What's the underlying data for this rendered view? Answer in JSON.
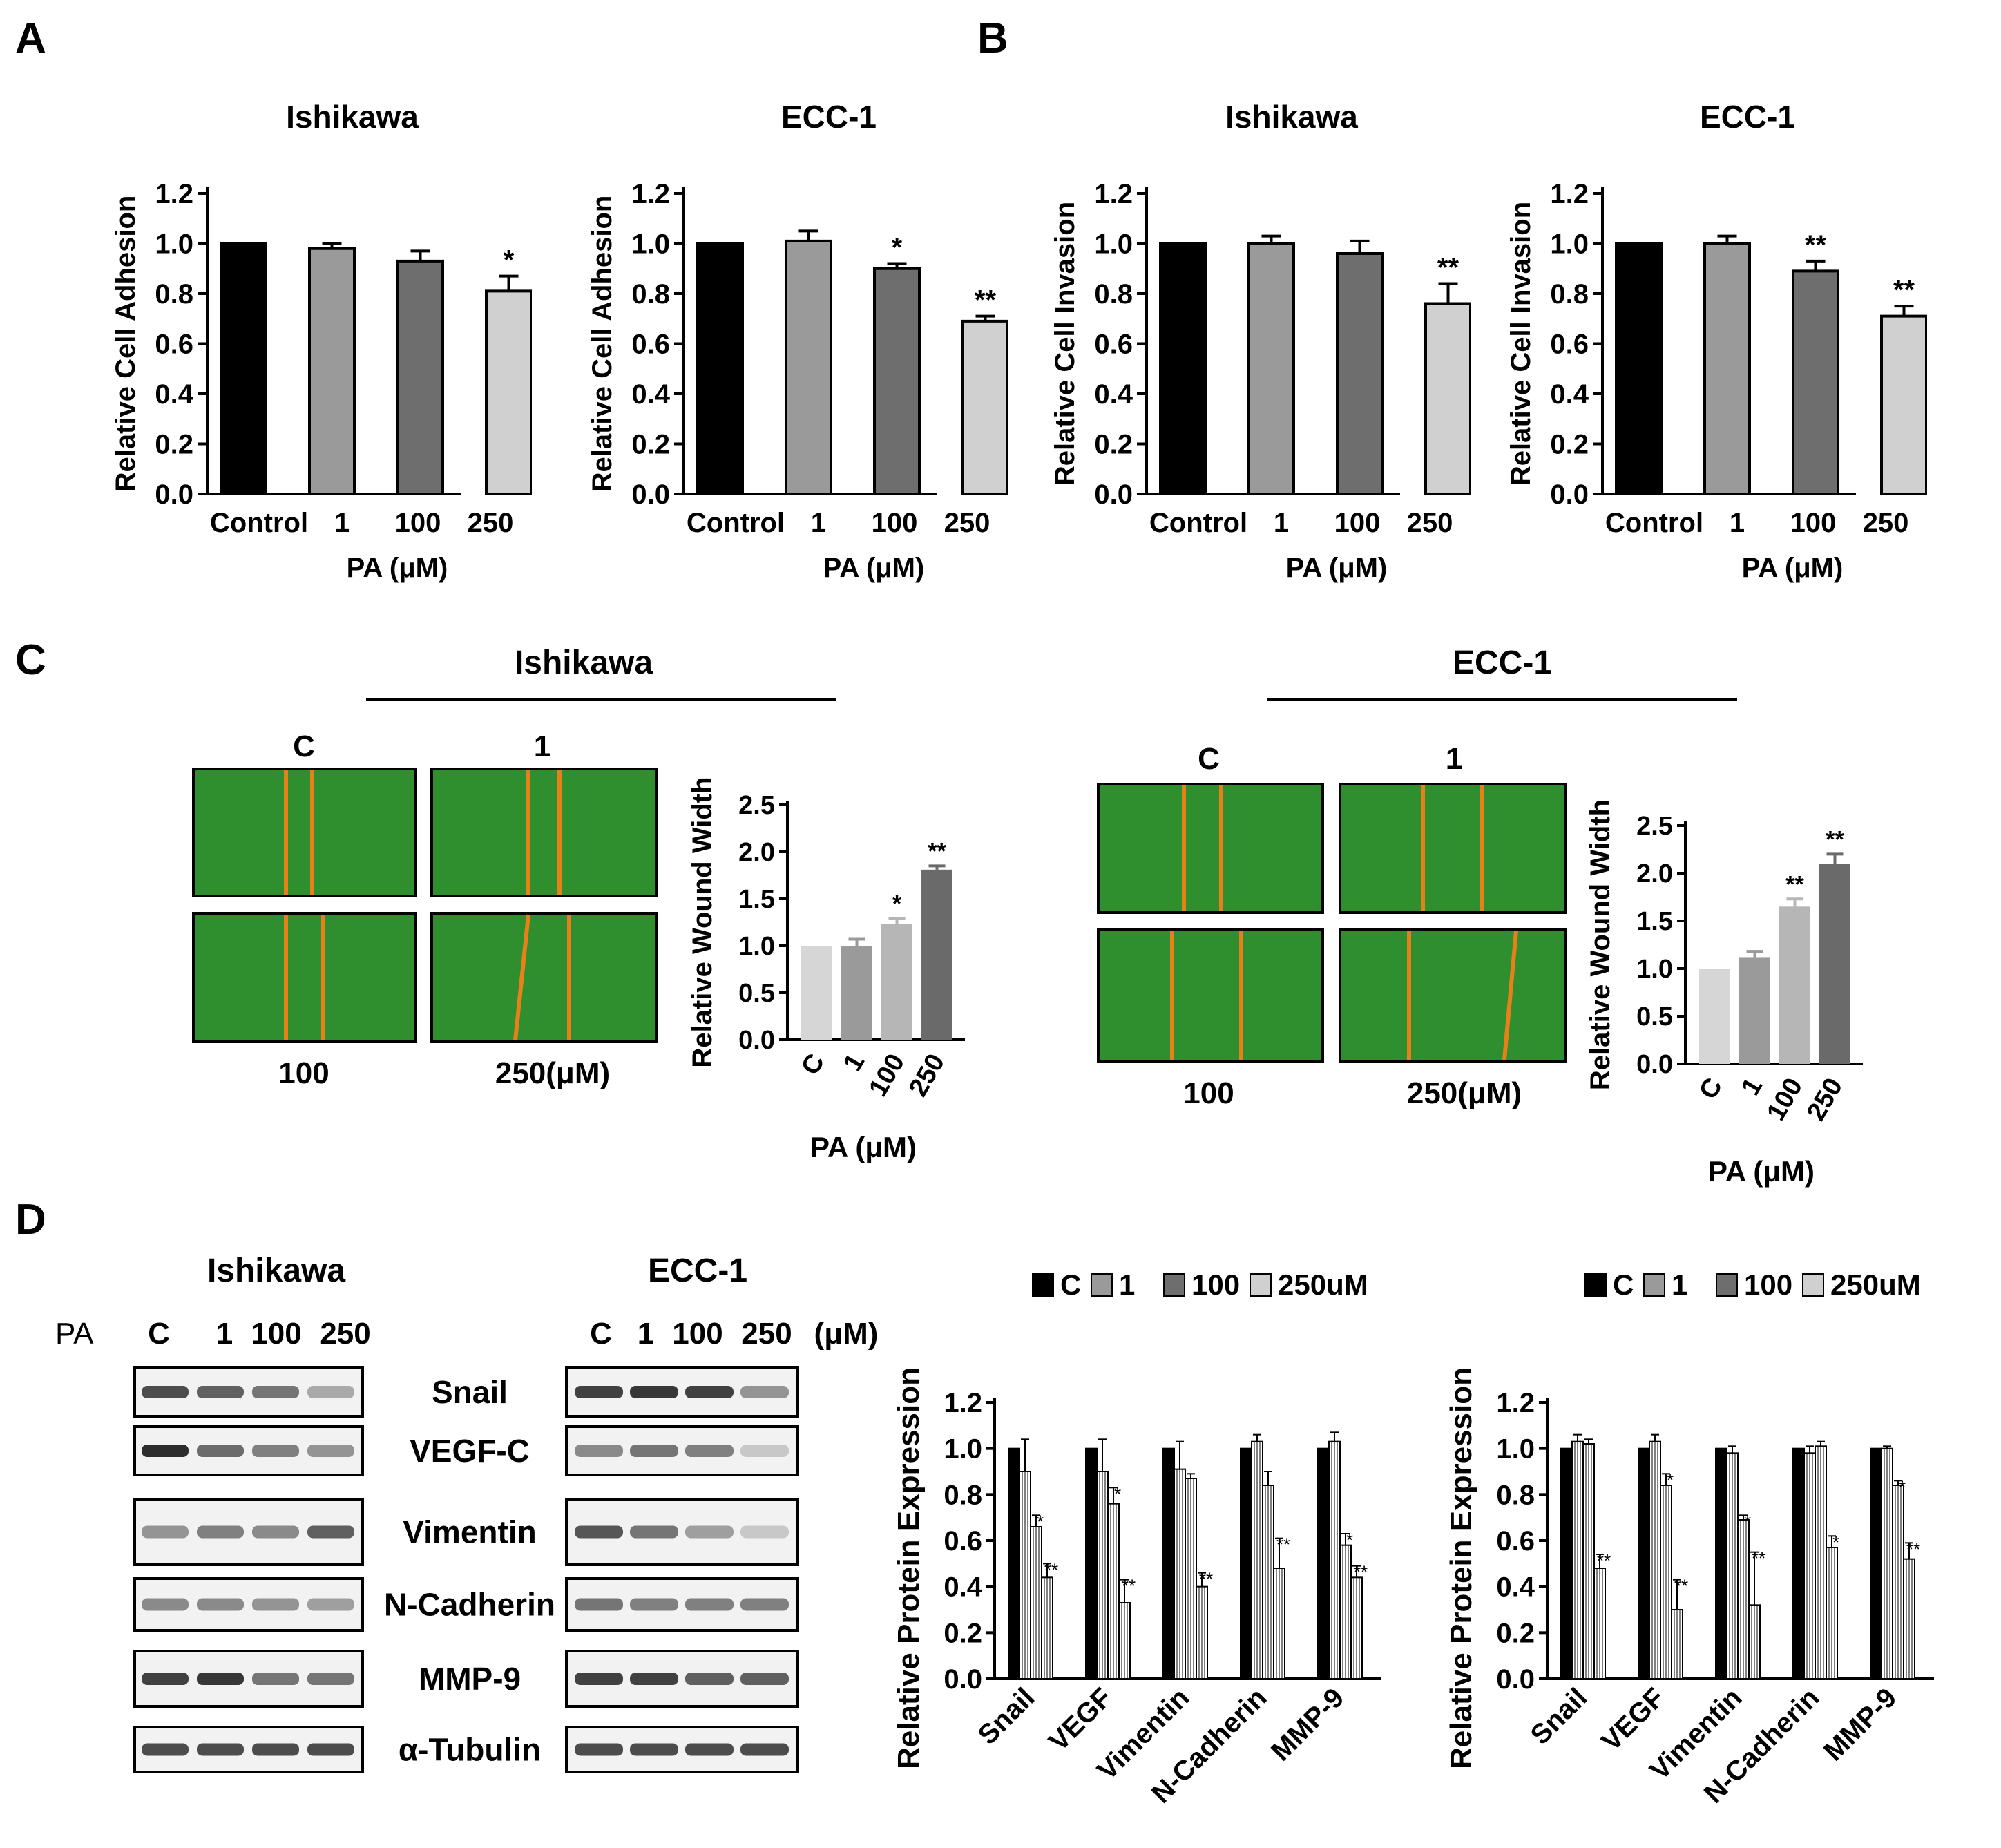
{
  "panel_labels": {
    "a": "A",
    "b": "B",
    "c": "C",
    "d": "D"
  },
  "chart_data": [
    {
      "id": "A_ishikawa",
      "type": "bar",
      "title": "Ishikawa",
      "ylabel": "Relative Cell Adhesion",
      "xlabel": "PA (μM)",
      "categories": [
        "Control",
        "1",
        "100",
        "250"
      ],
      "values": [
        1.0,
        0.98,
        0.93,
        0.81
      ],
      "errors": [
        0,
        0.02,
        0.04,
        0.06
      ],
      "sig": [
        "",
        "",
        "",
        "*"
      ],
      "ylim": [
        0,
        1.2
      ],
      "yticks": [
        "0.0",
        "0.2",
        "0.4",
        "0.6",
        "0.8",
        "1.0",
        "1.2"
      ]
    },
    {
      "id": "A_ecc1",
      "type": "bar",
      "title": "ECC-1",
      "ylabel": "Relative Cell Adhesion",
      "xlabel": "PA (μM)",
      "categories": [
        "Control",
        "1",
        "100",
        "250"
      ],
      "values": [
        1.0,
        1.01,
        0.9,
        0.69
      ],
      "errors": [
        0,
        0.04,
        0.02,
        0.02
      ],
      "sig": [
        "",
        "",
        "*",
        "**"
      ],
      "ylim": [
        0,
        1.2
      ],
      "yticks": [
        "0.0",
        "0.2",
        "0.4",
        "0.6",
        "0.8",
        "1.0",
        "1.2"
      ]
    },
    {
      "id": "B_ishikawa",
      "type": "bar",
      "title": "Ishikawa",
      "ylabel": "Relative Cell Invasion",
      "xlabel": "PA (μM)",
      "categories": [
        "Control",
        "1",
        "100",
        "250"
      ],
      "values": [
        1.0,
        1.0,
        0.96,
        0.76
      ],
      "errors": [
        0,
        0.03,
        0.05,
        0.08
      ],
      "sig": [
        "",
        "",
        "",
        "**"
      ],
      "ylim": [
        0,
        1.2
      ],
      "yticks": [
        "0.0",
        "0.2",
        "0.4",
        "0.6",
        "0.8",
        "1.0",
        "1.2"
      ]
    },
    {
      "id": "B_ecc1",
      "type": "bar",
      "title": "ECC-1",
      "ylabel": "Relative Cell Invasion",
      "xlabel": "PA (μM)",
      "categories": [
        "Control",
        "1",
        "100",
        "250"
      ],
      "values": [
        1.0,
        1.0,
        0.89,
        0.71
      ],
      "errors": [
        0,
        0.03,
        0.04,
        0.04
      ],
      "sig": [
        "",
        "",
        "**",
        "**"
      ],
      "ylim": [
        0,
        1.2
      ],
      "yticks": [
        "0.0",
        "0.2",
        "0.4",
        "0.6",
        "0.8",
        "1.0",
        "1.2"
      ]
    },
    {
      "id": "C_ishikawa",
      "type": "bar",
      "title": "",
      "ylabel": "Relative Wound Width",
      "xlabel": "PA (μM)",
      "categories": [
        "C",
        "1",
        "100",
        "250"
      ],
      "values": [
        1.0,
        1.0,
        1.23,
        1.81
      ],
      "errors": [
        0,
        0.07,
        0.06,
        0.04
      ],
      "sig": [
        "",
        "",
        "*",
        "**"
      ],
      "ylim": [
        0,
        2.5
      ],
      "yticks": [
        "0.0",
        "0.5",
        "1.0",
        "1.5",
        "2.0",
        "2.5"
      ]
    },
    {
      "id": "C_ecc1",
      "type": "bar",
      "title": "",
      "ylabel": "Relative Wound Width",
      "xlabel": "PA (μM)",
      "categories": [
        "C",
        "1",
        "100",
        "250"
      ],
      "values": [
        1.0,
        1.12,
        1.65,
        2.1
      ],
      "errors": [
        0,
        0.06,
        0.08,
        0.1
      ],
      "sig": [
        "",
        "",
        "**",
        "**"
      ],
      "ylim": [
        0,
        2.5
      ],
      "yticks": [
        "0.0",
        "0.5",
        "1.0",
        "1.5",
        "2.0",
        "2.5"
      ]
    },
    {
      "id": "D_ishikawa",
      "type": "grouped-bar",
      "ylabel": "Relative Protein Expression",
      "categories": [
        "Snail",
        "VEGF",
        "Vimentin",
        "N-Cadherin",
        "MMP-9"
      ],
      "legend": [
        "C",
        "1",
        "100",
        "250uM"
      ],
      "series": [
        {
          "name": "C",
          "values": [
            1.0,
            1.0,
            1.0,
            1.0,
            1.0
          ]
        },
        {
          "name": "1",
          "values": [
            0.9,
            0.9,
            0.91,
            1.03,
            1.03
          ]
        },
        {
          "name": "100",
          "values": [
            0.66,
            0.76,
            0.87,
            0.84,
            0.58
          ]
        },
        {
          "name": "250uM",
          "values": [
            0.44,
            0.33,
            0.4,
            0.48,
            0.44
          ]
        }
      ],
      "errors": [
        [
          0,
          0,
          0,
          0,
          0
        ],
        [
          0.14,
          0.14,
          0.12,
          0.03,
          0.04
        ],
        [
          0.05,
          0.07,
          0.02,
          0.06,
          0.05
        ],
        [
          0.06,
          0.1,
          0.06,
          0.13,
          0.05
        ]
      ],
      "sig": [
        [
          "",
          "",
          "",
          ""
        ],
        [
          "",
          "",
          "",
          ""
        ],
        [
          "",
          "",
          "*",
          "**"
        ],
        [
          "",
          "",
          "*",
          "**"
        ],
        [
          "",
          "",
          "",
          ""
        ]
      ],
      "sig_list": [
        [
          "",
          "",
          "*",
          "**"
        ],
        [
          "",
          "",
          "*",
          "**"
        ],
        [
          "",
          "",
          "",
          "**"
        ],
        [
          "",
          "",
          "",
          "**"
        ],
        [
          "",
          "",
          "*",
          "**"
        ]
      ],
      "ylim": [
        0,
        1.2
      ],
      "yticks": [
        "0.0",
        "0.2",
        "0.4",
        "0.6",
        "0.8",
        "1.0",
        "1.2"
      ]
    },
    {
      "id": "D_ecc1",
      "type": "grouped-bar",
      "ylabel": "Relative Protein Expression",
      "categories": [
        "Snail",
        "VEGF",
        "Vimentin",
        "N-Cadherin",
        "MMP-9"
      ],
      "legend": [
        "C",
        "1",
        "100",
        "250uM"
      ],
      "series": [
        {
          "name": "C",
          "values": [
            1.0,
            1.0,
            1.0,
            1.0,
            1.0
          ]
        },
        {
          "name": "1",
          "values": [
            1.03,
            1.03,
            0.98,
            0.98,
            1.0
          ]
        },
        {
          "name": "100",
          "values": [
            1.02,
            0.84,
            0.69,
            1.01,
            0.84
          ]
        },
        {
          "name": "250uM",
          "values": [
            0.48,
            0.3,
            0.32,
            0.57,
            0.52
          ]
        }
      ],
      "errors": [
        [
          0,
          0,
          0,
          0,
          0
        ],
        [
          0.03,
          0.03,
          0.03,
          0.03,
          0.01
        ],
        [
          0.02,
          0.05,
          0.02,
          0.02,
          0.02
        ],
        [
          0.06,
          0.13,
          0.23,
          0.05,
          0.07
        ]
      ],
      "sig_list": [
        [
          "",
          "",
          "",
          "**"
        ],
        [
          "",
          "",
          "*",
          "**"
        ],
        [
          "",
          "",
          "*",
          "**"
        ],
        [
          "",
          "",
          "",
          "*"
        ],
        [
          "",
          "",
          "*",
          "**"
        ]
      ],
      "ylim": [
        0,
        1.2
      ],
      "yticks": [
        "0.0",
        "0.2",
        "0.4",
        "0.6",
        "0.8",
        "1.0",
        "1.2"
      ]
    }
  ],
  "panel_c": {
    "ishikawa": {
      "title": "Ishikawa",
      "label_c": "C",
      "label_1": "1",
      "label_100": "100",
      "label_250": "250(μM)"
    },
    "ecc1": {
      "title": "ECC-1",
      "label_c": "C",
      "label_1": "1",
      "label_100": "100",
      "label_250": "250(μM)"
    }
  },
  "panel_d": {
    "ishikawa_title": "Ishikawa",
    "ecc1_title": "ECC-1",
    "pa_label": "PA",
    "ishikawa_lanes": [
      "C",
      "1",
      "100",
      "250"
    ],
    "ecc1_lanes": [
      "C",
      "1",
      "100",
      "250",
      "(μM)"
    ],
    "proteins": [
      "Snail",
      "VEGF-C",
      "Vimentin",
      "N-Cadherin",
      "MMP-9",
      "α-Tubulin"
    ]
  },
  "colors": {
    "bar_black": "#000000",
    "bar_grey1": "#9a9a9a",
    "bar_grey2": "#6e6e6e",
    "bar_light": "#d0d0d0",
    "wound_green": "#2f8f2f",
    "wound_line": "#e8801a"
  }
}
